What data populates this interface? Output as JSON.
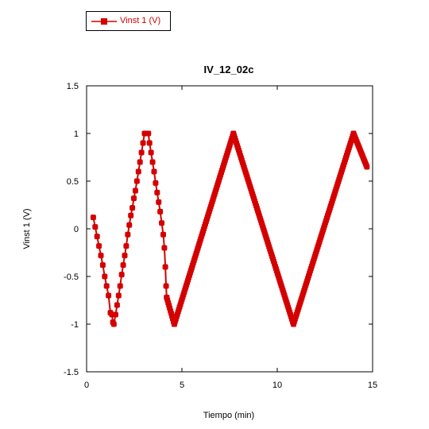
{
  "legend": {
    "label": "Vinst 1 (V)"
  },
  "chart_data": {
    "type": "line",
    "title": "IV_12_02c",
    "xlabel": "Tiempo (min)",
    "ylabel": "Vinst 1 (V)",
    "xlim": [
      0,
      15
    ],
    "ylim": [
      -1.5,
      1.5
    ],
    "xticks": [
      0,
      5,
      10,
      15
    ],
    "xtick_labels": [
      "0",
      "5",
      "10",
      "15"
    ],
    "yticks": [
      1.5,
      1,
      0.5,
      0,
      -0.5,
      -1,
      -1.5
    ],
    "ytick_labels": [
      "1.5",
      "1",
      "0.5",
      "0",
      "-0.5",
      "-1",
      "-1.5"
    ],
    "grid": false,
    "legend_position": "top-left outside",
    "colors": {
      "series": "#d40000"
    },
    "series": [
      {
        "name": "Vinst 1 (V)",
        "x": [
          0.35,
          0.45,
          0.55,
          0.65,
          0.75,
          0.85,
          0.95,
          1.05,
          1.15,
          1.25,
          1.33,
          1.38,
          1.43,
          1.52,
          1.6,
          1.68,
          1.76,
          1.84,
          1.92,
          2.0,
          2.08,
          2.16,
          2.24,
          2.32,
          2.4,
          2.48,
          2.56,
          2.64,
          2.72,
          2.8,
          2.88,
          2.96,
          3.04,
          3.12,
          3.18,
          3.24,
          3.3,
          3.38,
          3.46,
          3.54,
          3.62,
          3.7,
          3.78,
          3.86,
          3.94,
          4.02,
          4.08,
          4.13,
          4.17,
          4.2,
          4.6,
          7.7,
          10.85,
          14.0,
          14.7
        ],
        "y": [
          0.12,
          0.02,
          -0.08,
          -0.18,
          -0.28,
          -0.38,
          -0.5,
          -0.6,
          -0.7,
          -0.88,
          -0.9,
          -0.98,
          -1.0,
          -0.9,
          -0.8,
          -0.7,
          -0.6,
          -0.48,
          -0.38,
          -0.28,
          -0.18,
          -0.06,
          0.04,
          0.14,
          0.22,
          0.32,
          0.4,
          0.5,
          0.6,
          0.7,
          0.8,
          0.9,
          1.0,
          1.0,
          1.0,
          1.0,
          0.9,
          0.8,
          0.7,
          0.6,
          0.48,
          0.38,
          0.28,
          0.18,
          0.06,
          -0.06,
          -0.2,
          -0.4,
          -0.6,
          -0.72,
          -1.0,
          1.0,
          -1.0,
          1.0,
          0.65
        ]
      }
    ]
  }
}
